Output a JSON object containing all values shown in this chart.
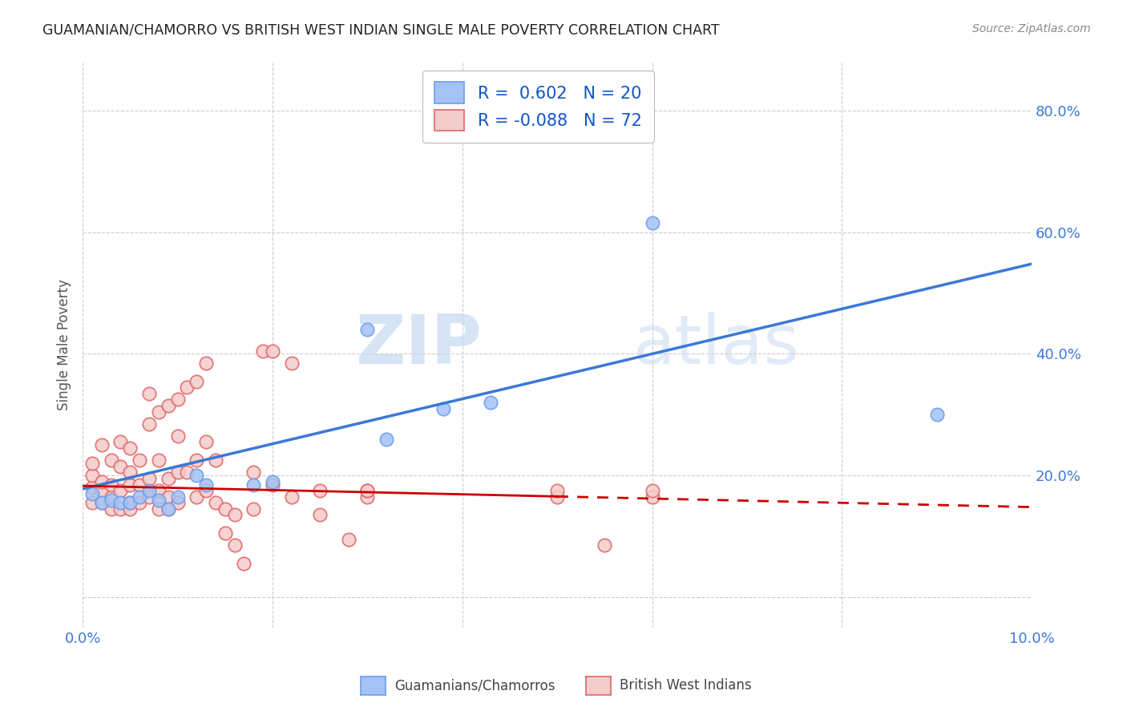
{
  "title": "GUAMANIAN/CHAMORRO VS BRITISH WEST INDIAN SINGLE MALE POVERTY CORRELATION CHART",
  "source": "Source: ZipAtlas.com",
  "ylabel": "Single Male Poverty",
  "xlim": [
    0.0,
    0.1
  ],
  "ylim": [
    -0.05,
    0.88
  ],
  "xticks": [
    0.0,
    0.02,
    0.04,
    0.06,
    0.08,
    0.1
  ],
  "xtick_labels": [
    "0.0%",
    "",
    "",
    "",
    "",
    "10.0%"
  ],
  "yticks": [
    0.0,
    0.2,
    0.4,
    0.6,
    0.8
  ],
  "ytick_labels": [
    "",
    "20.0%",
    "40.0%",
    "60.0%",
    "80.0%"
  ],
  "blue_fill": "#a4c2f4",
  "blue_edge": "#6d9eeb",
  "pink_fill": "#f4cccc",
  "pink_edge": "#e06666",
  "blue_line_color": "#3c78d8",
  "pink_line_color": "#cc0000",
  "label_blue": "Guamanians/Chamorros",
  "label_pink": "British West Indians",
  "legend_text_color": "#1155cc",
  "blue_x": [
    0.001,
    0.002,
    0.003,
    0.004,
    0.005,
    0.006,
    0.007,
    0.008,
    0.009,
    0.01,
    0.012,
    0.013,
    0.018,
    0.02,
    0.03,
    0.032,
    0.038,
    0.043,
    0.06,
    0.09
  ],
  "blue_y": [
    0.17,
    0.155,
    0.16,
    0.155,
    0.155,
    0.165,
    0.175,
    0.16,
    0.145,
    0.165,
    0.2,
    0.185,
    0.185,
    0.19,
    0.44,
    0.26,
    0.31,
    0.32,
    0.615,
    0.3
  ],
  "pink_x": [
    0.001,
    0.001,
    0.001,
    0.001,
    0.002,
    0.002,
    0.002,
    0.002,
    0.003,
    0.003,
    0.003,
    0.003,
    0.004,
    0.004,
    0.004,
    0.004,
    0.005,
    0.005,
    0.005,
    0.005,
    0.005,
    0.006,
    0.006,
    0.006,
    0.007,
    0.007,
    0.007,
    0.007,
    0.008,
    0.008,
    0.008,
    0.008,
    0.009,
    0.009,
    0.009,
    0.009,
    0.01,
    0.01,
    0.01,
    0.01,
    0.011,
    0.011,
    0.012,
    0.012,
    0.012,
    0.013,
    0.013,
    0.013,
    0.014,
    0.014,
    0.015,
    0.015,
    0.016,
    0.016,
    0.017,
    0.018,
    0.018,
    0.019,
    0.02,
    0.02,
    0.022,
    0.022,
    0.025,
    0.025,
    0.028,
    0.03,
    0.03,
    0.03,
    0.05,
    0.05,
    0.055,
    0.06,
    0.06
  ],
  "pink_y": [
    0.155,
    0.18,
    0.2,
    0.22,
    0.155,
    0.175,
    0.19,
    0.25,
    0.145,
    0.165,
    0.185,
    0.225,
    0.145,
    0.175,
    0.215,
    0.255,
    0.145,
    0.155,
    0.185,
    0.205,
    0.245,
    0.155,
    0.185,
    0.225,
    0.165,
    0.195,
    0.285,
    0.335,
    0.145,
    0.175,
    0.225,
    0.305,
    0.145,
    0.165,
    0.195,
    0.315,
    0.155,
    0.205,
    0.265,
    0.325,
    0.205,
    0.345,
    0.165,
    0.225,
    0.355,
    0.175,
    0.255,
    0.385,
    0.155,
    0.225,
    0.145,
    0.105,
    0.135,
    0.085,
    0.055,
    0.145,
    0.205,
    0.405,
    0.185,
    0.405,
    0.165,
    0.385,
    0.175,
    0.135,
    0.095,
    0.165,
    0.175,
    0.175,
    0.165,
    0.175,
    0.085,
    0.165,
    0.175
  ],
  "blue_line_x0": 0.0,
  "blue_line_y0": 0.178,
  "blue_line_x1": 0.1,
  "blue_line_y1": 0.548,
  "pink_line_x0": 0.0,
  "pink_line_y0": 0.183,
  "pink_line_x1": 0.1,
  "pink_line_y1": 0.148
}
